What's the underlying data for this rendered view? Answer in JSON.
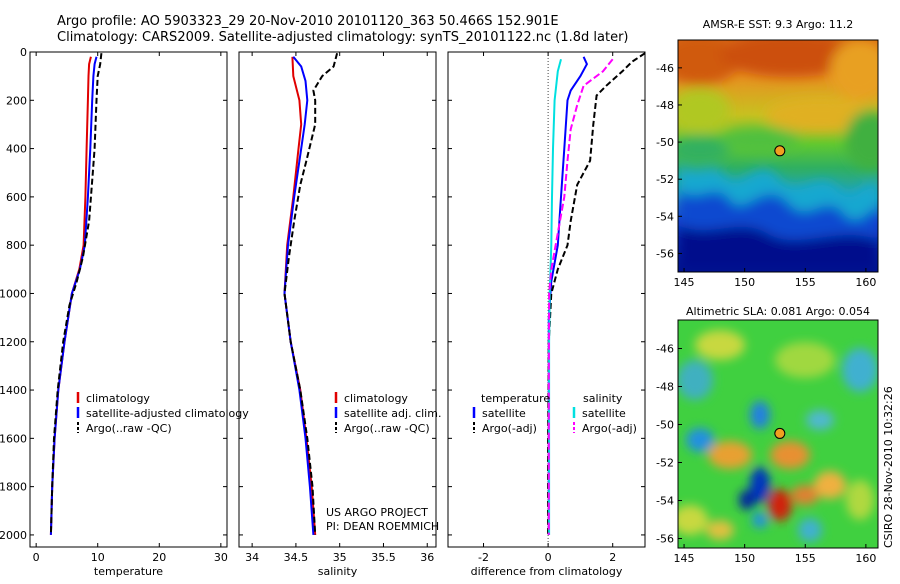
{
  "header": {
    "line1": "Argo profile: AO 5903323_29 20-Nov-2010 20101120_363 50.466S 152.901E",
    "line2": "Climatology: CARS2009. Satellite-adjusted climatology: synTS_20101122.nc (1.8d later)"
  },
  "project": {
    "line1": "US ARGO PROJECT",
    "line2": "PI: DEAN ROEMMICH"
  },
  "stamp": "CSIRO 28-Nov-2010 10:32:26",
  "colors": {
    "climatology": "#e00000",
    "satellite": "#0000ff",
    "argo": "#000000",
    "sal_satellite": "#00e0e0",
    "sal_argo": "#ff00ff"
  },
  "chart_data": [
    {
      "type": "line",
      "xlabel": "temperature",
      "ylabel": "",
      "xlim": [
        -1,
        31
      ],
      "ylim": [
        2050,
        0
      ],
      "xticks": [
        0,
        10,
        20,
        30
      ],
      "yticks": [
        0,
        200,
        400,
        600,
        800,
        1000,
        1200,
        1400,
        1600,
        1800,
        2000
      ],
      "legend": [
        "climatology",
        "satellite-adjusted climatology",
        "Argo(..raw -QC)"
      ],
      "series": [
        {
          "name": "climatology",
          "color": "#e00000",
          "dash": "",
          "points": [
            [
              8.9,
              20
            ],
            [
              8.6,
              50
            ],
            [
              8.5,
              100
            ],
            [
              8.4,
              200
            ],
            [
              8.2,
              400
            ],
            [
              8.0,
              600
            ],
            [
              7.7,
              800
            ],
            [
              7.0,
              900
            ],
            [
              5.8,
              1000
            ],
            [
              4.6,
              1200
            ],
            [
              3.6,
              1400
            ],
            [
              3.0,
              1600
            ],
            [
              2.6,
              1800
            ],
            [
              2.4,
              2000
            ]
          ]
        },
        {
          "name": "satellite-adjusted climatology",
          "color": "#0000ff",
          "dash": "",
          "points": [
            [
              9.8,
              20
            ],
            [
              9.5,
              50
            ],
            [
              9.3,
              100
            ],
            [
              9.1,
              200
            ],
            [
              8.8,
              400
            ],
            [
              8.4,
              600
            ],
            [
              7.9,
              800
            ],
            [
              7.1,
              900
            ],
            [
              5.8,
              1000
            ],
            [
              4.6,
              1200
            ],
            [
              3.6,
              1400
            ],
            [
              3.0,
              1600
            ],
            [
              2.6,
              1800
            ],
            [
              2.4,
              2000
            ]
          ]
        },
        {
          "name": "Argo(..raw -QC)",
          "color": "#000000",
          "dash": "6,3",
          "points": [
            [
              10.6,
              5
            ],
            [
              10.4,
              50
            ],
            [
              10.0,
              100
            ],
            [
              9.8,
              200
            ],
            [
              9.5,
              400
            ],
            [
              9.2,
              500
            ],
            [
              8.6,
              700
            ],
            [
              7.6,
              850
            ],
            [
              6.6,
              950
            ],
            [
              5.4,
              1050
            ],
            [
              4.4,
              1200
            ],
            [
              3.5,
              1400
            ],
            [
              2.9,
              1600
            ],
            [
              2.6,
              1800
            ],
            [
              2.4,
              2000
            ]
          ]
        }
      ]
    },
    {
      "type": "line",
      "xlabel": "salinity",
      "ylabel": "",
      "xlim": [
        33.85,
        36.1
      ],
      "ylim": [
        2050,
        0
      ],
      "xticks": [
        34,
        34.5,
        35,
        35.5,
        36
      ],
      "yticks": [
        0,
        200,
        400,
        600,
        800,
        1000,
        1200,
        1400,
        1600,
        1800,
        2000
      ],
      "legend": [
        "climatology",
        "satellite adj. clim.",
        "Argo(..raw -QC)"
      ],
      "series": [
        {
          "name": "climatology",
          "color": "#e00000",
          "dash": "",
          "points": [
            [
              34.46,
              20
            ],
            [
              34.47,
              100
            ],
            [
              34.54,
              200
            ],
            [
              34.56,
              300
            ],
            [
              34.53,
              400
            ],
            [
              34.47,
              600
            ],
            [
              34.4,
              800
            ],
            [
              34.37,
              1000
            ],
            [
              34.44,
              1200
            ],
            [
              34.55,
              1400
            ],
            [
              34.62,
              1600
            ],
            [
              34.68,
              1800
            ],
            [
              34.72,
              2000
            ]
          ]
        },
        {
          "name": "satellite adj. clim.",
          "color": "#0000ff",
          "dash": "",
          "points": [
            [
              34.47,
              20
            ],
            [
              34.56,
              60
            ],
            [
              34.61,
              120
            ],
            [
              34.63,
              200
            ],
            [
              34.6,
              300
            ],
            [
              34.56,
              400
            ],
            [
              34.48,
              600
            ],
            [
              34.41,
              800
            ],
            [
              34.37,
              1000
            ],
            [
              34.44,
              1200
            ],
            [
              34.54,
              1400
            ],
            [
              34.61,
              1600
            ],
            [
              34.66,
              1800
            ],
            [
              34.7,
              2000
            ]
          ]
        },
        {
          "name": "Argo(..raw -QC)",
          "color": "#000000",
          "dash": "6,3",
          "points": [
            [
              34.97,
              5
            ],
            [
              34.93,
              60
            ],
            [
              34.8,
              100
            ],
            [
              34.7,
              160
            ],
            [
              34.72,
              200
            ],
            [
              34.72,
              300
            ],
            [
              34.62,
              450
            ],
            [
              34.55,
              550
            ],
            [
              34.48,
              700
            ],
            [
              34.42,
              850
            ],
            [
              34.37,
              1000
            ],
            [
              34.44,
              1200
            ],
            [
              34.55,
              1400
            ],
            [
              34.63,
              1600
            ],
            [
              34.69,
              1800
            ],
            [
              34.72,
              2000
            ]
          ]
        }
      ]
    },
    {
      "type": "line",
      "xlabel": "difference from climatology",
      "ylabel": "",
      "xlim": [
        -3.1,
        3.0
      ],
      "ylim": [
        2050,
        0
      ],
      "xticks": [
        -2,
        0,
        2
      ],
      "yticks": [
        0,
        200,
        400,
        600,
        800,
        1000,
        1200,
        1400,
        1600,
        1800,
        2000
      ],
      "legend": [
        "temperature",
        "satellite",
        "Argo(-adj)",
        "salinity",
        "satellite",
        "Argo(-adj)"
      ],
      "series": [
        {
          "name": "satellite",
          "group": "temperature",
          "color": "#0000ff",
          "dash": "",
          "points": [
            [
              1.1,
              20
            ],
            [
              1.2,
              50
            ],
            [
              1.0,
              100
            ],
            [
              0.7,
              160
            ],
            [
              0.6,
              200
            ],
            [
              0.5,
              400
            ],
            [
              0.4,
              600
            ],
            [
              0.3,
              800
            ],
            [
              0.1,
              950
            ],
            [
              0.02,
              1100
            ],
            [
              0.02,
              1400
            ],
            [
              0.02,
              1800
            ],
            [
              0.02,
              2000
            ]
          ]
        },
        {
          "name": "Argo(-adj)",
          "group": "temperature",
          "color": "#000000",
          "dash": "6,3",
          "points": [
            [
              3.0,
              5
            ],
            [
              2.6,
              40
            ],
            [
              2.3,
              80
            ],
            [
              1.8,
              140
            ],
            [
              1.5,
              180
            ],
            [
              1.4,
              300
            ],
            [
              1.3,
              450
            ],
            [
              0.9,
              550
            ],
            [
              0.7,
              700
            ],
            [
              0.6,
              800
            ],
            [
              0.3,
              900
            ],
            [
              0.1,
              1000
            ],
            [
              0.02,
              1200
            ],
            [
              0.0,
              1600
            ],
            [
              0.0,
              2000
            ]
          ]
        },
        {
          "name": "satellite",
          "group": "salinity",
          "color": "#00e0e0",
          "dash": "",
          "points": [
            [
              0.4,
              30
            ],
            [
              0.3,
              80
            ],
            [
              0.2,
              200
            ],
            [
              0.15,
              400
            ],
            [
              0.12,
              600
            ],
            [
              0.1,
              800
            ],
            [
              0.05,
              1000
            ],
            [
              0.03,
              1200
            ],
            [
              0.03,
              1600
            ],
            [
              0.03,
              2000
            ]
          ]
        },
        {
          "name": "Argo(-adj)",
          "group": "salinity",
          "color": "#ff00ff",
          "dash": "7,3",
          "points": [
            [
              2.0,
              30
            ],
            [
              1.7,
              80
            ],
            [
              1.1,
              140
            ],
            [
              0.9,
              220
            ],
            [
              0.7,
              320
            ],
            [
              0.6,
              450
            ],
            [
              0.5,
              600
            ],
            [
              0.3,
              750
            ],
            [
              0.1,
              900
            ],
            [
              0.03,
              1000
            ],
            [
              0.02,
              1400
            ],
            [
              0.02,
              2000
            ]
          ]
        }
      ]
    },
    {
      "type": "heatmap",
      "title": "AMSR-E SST: 9.3 Argo: 11.2",
      "xlim": [
        144.5,
        161
      ],
      "ylim": [
        -57,
        -44.5
      ],
      "xticks": [
        145,
        150,
        155,
        160
      ],
      "yticks": [
        -46,
        -48,
        -50,
        -52,
        -54,
        -56
      ],
      "point": [
        152.9,
        -50.47
      ]
    },
    {
      "type": "heatmap",
      "title": "Altimetric SLA: 0.081 Argo: 0.054",
      "xlim": [
        144.5,
        161
      ],
      "ylim": [
        -56.5,
        -44.5
      ],
      "xticks": [
        145,
        150,
        155,
        160
      ],
      "yticks": [
        -46,
        -48,
        -50,
        -52,
        -54,
        -56
      ],
      "point": [
        152.9,
        -50.47
      ]
    }
  ]
}
